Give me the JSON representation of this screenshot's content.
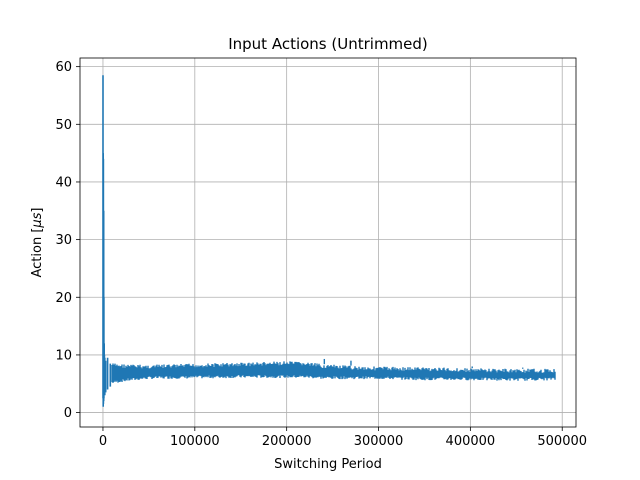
{
  "chart_data": {
    "type": "line",
    "title": "Input Actions (Untrimmed)",
    "xlabel": "Switching Period",
    "ylabel": "Action [",
    "ylabel_unit": "μs",
    "ylabel_close": "]",
    "xlim": [
      -25000,
      515000
    ],
    "ylim": [
      -2.5,
      61.5
    ],
    "x_ticks": [
      0,
      100000,
      200000,
      300000,
      400000,
      500000
    ],
    "x_tick_labels": [
      "0",
      "100000",
      "200000",
      "300000",
      "400000",
      "500000"
    ],
    "y_ticks": [
      0,
      10,
      20,
      30,
      40,
      50,
      60
    ],
    "y_tick_labels": [
      "0",
      "10",
      "20",
      "30",
      "40",
      "50",
      "60"
    ],
    "grid": true,
    "series": [
      {
        "color": "#1f77b4",
        "x_end": 492000,
        "initial_transient": {
          "x": [
            0,
            300,
            500,
            800,
            1000,
            1300,
            1600,
            2000,
            3000,
            5000,
            8000
          ],
          "y_high": [
            58.5,
            45,
            44,
            35,
            20,
            12,
            10,
            9.5,
            9,
            9.5,
            8.5
          ],
          "y_low": [
            2.5,
            1,
            1.5,
            2,
            2.5,
            3,
            3.5,
            3,
            3.5,
            4,
            4.5
          ]
        },
        "band": {
          "x": [
            10000,
            25000,
            50000,
            100000,
            150000,
            200000,
            220000,
            240000,
            260000,
            300000,
            350000,
            400000,
            450000,
            492000
          ],
          "y_high": [
            8.6,
            8.4,
            8.3,
            8.5,
            8.7,
            8.9,
            8.8,
            8.4,
            8.2,
            8.0,
            7.9,
            7.7,
            7.6,
            7.6
          ],
          "y_low": [
            5.0,
            5.4,
            5.8,
            5.9,
            6.0,
            6.0,
            6.0,
            5.8,
            5.8,
            5.8,
            5.6,
            5.6,
            5.5,
            5.6
          ]
        },
        "spikes": [
          {
            "x": 241000,
            "y": 9.3
          },
          {
            "x": 270000,
            "y": 9.0
          },
          {
            "x": 402000,
            "y": 8.0
          },
          {
            "x": 457000,
            "y": 7.8
          }
        ]
      }
    ]
  }
}
